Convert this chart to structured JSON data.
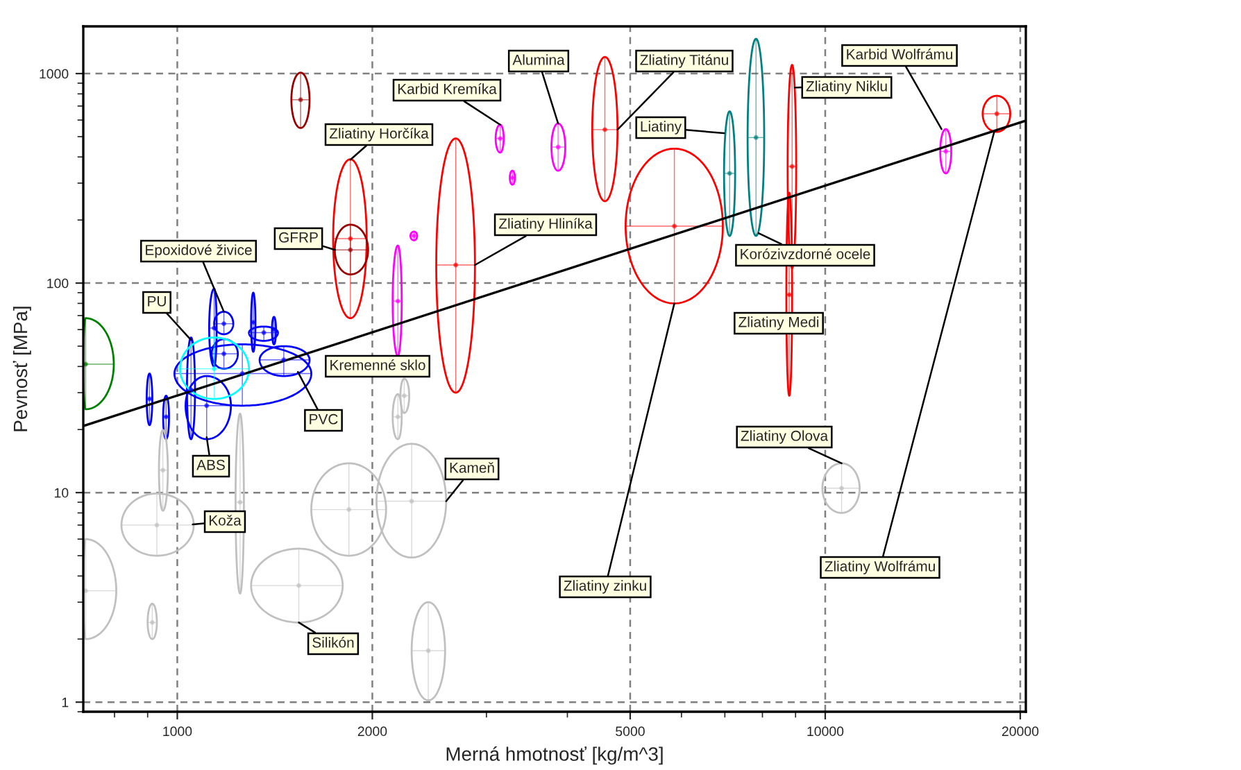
{
  "chart_data": {
    "type": "scatter",
    "xlabel": "Merná hmotnosť [kg/m^3]",
    "ylabel": "Pevnosť [MPa]",
    "log": "xy",
    "grid": true,
    "xlim": [
      716,
      20400
    ],
    "ylim": [
      0.9,
      1680
    ],
    "xticks": [
      1000,
      2000,
      5000,
      10000,
      20000
    ],
    "yticks": [
      1,
      10,
      100,
      1000
    ],
    "annotations": [
      {
        "text": "Karbid Kremíka",
        "x": 3150,
        "y": 570
      },
      {
        "text": "Alumina",
        "x": 3870,
        "y": 578
      },
      {
        "text": "Zliatiny Titánu",
        "x": 4780,
        "y": 540
      },
      {
        "text": "Karbid Wolfrámu",
        "x": 15120,
        "y": 543
      },
      {
        "text": "Zliatiny Horčíka",
        "x": 1850,
        "y": 388
      },
      {
        "text": "Zliatiny Niklu",
        "x": 8975,
        "y": 858
      },
      {
        "text": "Liatiny",
        "x": 6983,
        "y": 519
      },
      {
        "text": "GFRP",
        "x": 1752,
        "y": 144
      },
      {
        "text": "Zliatiny Hliníka",
        "x": 2880,
        "y": 122
      },
      {
        "text": "Epoxidové živice",
        "x": 1180,
        "y": 73
      },
      {
        "text": "PU",
        "x": 1050,
        "y": 53.5
      },
      {
        "text": "Korózivzdorné ocele",
        "x": 7890,
        "y": 173
      },
      {
        "text": "Zliatiny Medi",
        "x": 8890,
        "y": 64
      },
      {
        "text": "Kremenné sklo",
        "x": 2190,
        "y": 45
      },
      {
        "text": "PVC",
        "x": 1535,
        "y": 37.7
      },
      {
        "text": "ABS",
        "x": 1110,
        "y": 18.4
      },
      {
        "text": "Kameň",
        "x": 2600,
        "y": 9.1
      },
      {
        "text": "Zliatiny Olova",
        "x": 10600,
        "y": 13.8
      },
      {
        "text": "Koža",
        "x": 1056,
        "y": 7.05
      },
      {
        "text": "Zliatiny zinku",
        "x": 5850,
        "y": 80
      },
      {
        "text": "Zliatiny Wolfrámu",
        "x": 18230,
        "y": 527
      },
      {
        "text": "Silikón",
        "x": 1540,
        "y": 2.4
      }
    ],
    "series": [
      {
        "color": "#990000",
        "x": [
          1550
        ],
        "values": [
          750
        ],
        "xerrors": [
          [
            1500,
            1600
          ]
        ],
        "errors": [
          [
            550,
            1010
          ]
        ]
      },
      {
        "color": "#ff0000",
        "x": [
          1850
        ],
        "values": [
          163
        ],
        "xerrors": [
          [
            1740,
            1960
          ]
        ],
        "errors": [
          [
            68,
            390
          ]
        ]
      },
      {
        "color": "#990000",
        "x": [
          1850
        ],
        "values": [
          144
        ],
        "xerrors": [
          [
            1750,
            1970
          ]
        ],
        "errors": [
          [
            110,
            190
          ]
        ]
      },
      {
        "color": "#ff00ff",
        "x": [
          2190
        ],
        "values": [
          82
        ],
        "xerrors": [
          [
            2150,
            2220
          ]
        ],
        "errors": [
          [
            45,
            151
          ]
        ]
      },
      {
        "color": "#ff00ff",
        "x": [
          2320
        ],
        "values": [
          168
        ],
        "xerrors": [
          [
            2290,
            2345
          ]
        ],
        "errors": [
          [
            160,
            176
          ]
        ]
      },
      {
        "color": "#008000",
        "x": [
          722
        ],
        "values": [
          41
        ],
        "xerrors": [
          [
            716,
            798
          ]
        ],
        "errors": [
          [
            25,
            68
          ]
        ]
      },
      {
        "color": "#0000ff",
        "x": [
          1180
        ],
        "values": [
          64
        ],
        "xerrors": [
          [
            1140,
            1220
          ]
        ],
        "errors": [
          [
            57,
            73
          ]
        ]
      },
      {
        "color": "#0000ff",
        "x": [
          1140
        ],
        "values": [
          61
        ],
        "xerrors": [
          [
            1120,
            1150
          ]
        ],
        "errors": [
          [
            40,
            94
          ]
        ]
      },
      {
        "color": "#0000ff",
        "x": [
          1310
        ],
        "values": [
          65
        ],
        "xerrors": [
          [
            1300,
            1320
          ]
        ],
        "errors": [
          [
            47,
            90
          ]
        ]
      },
      {
        "color": "#0000ff",
        "x": [
          1410
        ],
        "values": [
          60
        ],
        "xerrors": [
          [
            1400,
            1420
          ]
        ],
        "errors": [
          [
            51,
            69
          ]
        ]
      },
      {
        "color": "#0000ff",
        "x": [
          1360
        ],
        "values": [
          58
        ],
        "xerrors": [
          [
            1290,
            1430
          ]
        ],
        "errors": [
          [
            53,
            62
          ]
        ]
      },
      {
        "color": "#0000ff",
        "x": [
          1180
        ],
        "values": [
          46
        ],
        "xerrors": [
          [
            1130,
            1240
          ]
        ],
        "errors": [
          [
            39,
            54
          ]
        ]
      },
      {
        "color": "#0000ff",
        "x": [
          1260
        ],
        "values": [
          37
        ],
        "xerrors": [
          [
            990,
            1610
          ]
        ],
        "errors": [
          [
            26,
            51
          ]
        ]
      },
      {
        "color": "#0000ff",
        "x": [
          1050
        ],
        "values": [
          31
        ],
        "xerrors": [
          [
            1035,
            1065
          ]
        ],
        "errors": [
          [
            18,
            55
          ]
        ]
      },
      {
        "color": "#0000ff",
        "x": [
          1110
        ],
        "values": [
          26
        ],
        "xerrors": [
          [
            1030,
            1210
          ]
        ],
        "errors": [
          [
            18,
            36
          ]
        ]
      },
      {
        "color": "#0000ff",
        "x": [
          1460
        ],
        "values": [
          43
        ],
        "xerrors": [
          [
            1340,
            1600
          ]
        ],
        "errors": [
          [
            36,
            50
          ]
        ]
      },
      {
        "color": "#00ffff",
        "x": [
          1140
        ],
        "values": [
          39
        ],
        "xerrors": [
          [
            1010,
            1290
          ]
        ],
        "errors": [
          [
            28,
            55
          ]
        ]
      },
      {
        "color": "#0000ff",
        "x": [
          906
        ],
        "values": [
          28
        ],
        "xerrors": [
          [
            897,
            915
          ]
        ],
        "errors": [
          [
            21,
            37
          ]
        ]
      },
      {
        "color": "#0000ff",
        "x": [
          961
        ],
        "values": [
          23
        ],
        "xerrors": [
          [
            951,
            971
          ]
        ],
        "errors": [
          [
            18,
            29
          ]
        ]
      },
      {
        "color": "#c0c0c0",
        "x": [
          930
        ],
        "values": [
          7.0
        ],
        "xerrors": [
          [
            820,
            1060
          ]
        ],
        "errors": [
          [
            5.0,
            9.9
          ]
        ]
      },
      {
        "color": "#c0c0c0",
        "x": [
          722
        ],
        "values": [
          3.4
        ],
        "xerrors": [
          [
            716,
            805
          ]
        ],
        "errors": [
          [
            2.0,
            6.0
          ]
        ]
      },
      {
        "color": "#c0c0c0",
        "x": [
          915
        ],
        "values": [
          2.4
        ],
        "xerrors": [
          [
            900,
            930
          ]
        ],
        "errors": [
          [
            2.0,
            2.95
          ]
        ]
      },
      {
        "color": "#c0c0c0",
        "x": [
          950
        ],
        "values": [
          12.8
        ],
        "xerrors": [
          [
            937,
            967
          ]
        ],
        "errors": [
          [
            8.2,
            19.9
          ]
        ]
      },
      {
        "color": "#c0c0c0",
        "x": [
          1250
        ],
        "values": [
          9.0
        ],
        "xerrors": [
          [
            1230,
            1267
          ]
        ],
        "errors": [
          [
            3.3,
            23.8
          ]
        ]
      },
      {
        "color": "#c0c0c0",
        "x": [
          1540
        ],
        "values": [
          3.6
        ],
        "xerrors": [
          [
            1300,
            1800
          ]
        ],
        "errors": [
          [
            2.4,
            5.4
          ]
        ]
      },
      {
        "color": "#c0c0c0",
        "x": [
          1840
        ],
        "values": [
          8.3
        ],
        "xerrors": [
          [
            1610,
            2100
          ]
        ],
        "errors": [
          [
            5.0,
            13.8
          ]
        ]
      },
      {
        "color": "#c0c0c0",
        "x": [
          2300
        ],
        "values": [
          9.1
        ],
        "xerrors": [
          [
            2030,
            2600
          ]
        ],
        "errors": [
          [
            4.9,
            17.1
          ]
        ]
      },
      {
        "color": "#c0c0c0",
        "x": [
          2440
        ],
        "values": [
          1.76
        ],
        "xerrors": [
          [
            2300,
            2590
          ]
        ],
        "errors": [
          [
            1.02,
            3.0
          ]
        ]
      },
      {
        "color": "#c0c0c0",
        "x": [
          2240
        ],
        "values": [
          29
        ],
        "xerrors": [
          [
            2210,
            2280
          ]
        ],
        "errors": [
          [
            24,
            35
          ]
        ]
      },
      {
        "color": "#c0c0c0",
        "x": [
          2190
        ],
        "values": [
          23
        ],
        "xerrors": [
          [
            2150,
            2220
          ]
        ],
        "errors": [
          [
            18,
            29.5
          ]
        ]
      },
      {
        "color": "#c0c0c0",
        "x": [
          10600
        ],
        "values": [
          10.5
        ],
        "xerrors": [
          [
            9900,
            11300
          ]
        ],
        "errors": [
          [
            8.0,
            13.8
          ]
        ]
      },
      {
        "color": "#ff00ff",
        "x": [
          3150
        ],
        "values": [
          490
        ],
        "xerrors": [
          [
            3100,
            3190
          ]
        ],
        "errors": [
          [
            420,
            570
          ]
        ]
      },
      {
        "color": "#ff00ff",
        "x": [
          3290
        ],
        "values": [
          318
        ],
        "xerrors": [
          [
            3260,
            3320
          ]
        ],
        "errors": [
          [
            295,
            344
          ]
        ]
      },
      {
        "color": "#ff00ff",
        "x": [
          3870
        ],
        "values": [
          446
        ],
        "xerrors": [
          [
            3780,
            3970
          ]
        ],
        "errors": [
          [
            344,
            578
          ]
        ]
      },
      {
        "color": "#ff0000",
        "x": [
          4570
        ],
        "values": [
          540
        ],
        "xerrors": [
          [
            4370,
            4780
          ]
        ],
        "errors": [
          [
            246,
            1200
          ]
        ]
      },
      {
        "color": "#ff0000",
        "x": [
          2690
        ],
        "values": [
          122
        ],
        "xerrors": [
          [
            2510,
            2880
          ]
        ],
        "errors": [
          [
            30,
            490
          ]
        ]
      },
      {
        "color": "#ff0000",
        "x": [
          5850
        ],
        "values": [
          187
        ],
        "xerrors": [
          [
            4920,
            6950
          ]
        ],
        "errors": [
          [
            80,
            438
          ]
        ]
      },
      {
        "color": "#008080",
        "x": [
          7120
        ],
        "values": [
          334
        ],
        "xerrors": [
          [
            6980,
            7260
          ]
        ],
        "errors": [
          [
            168,
            660
          ]
        ]
      },
      {
        "color": "#008080",
        "x": [
          7820
        ],
        "values": [
          495
        ],
        "xerrors": [
          [
            7590,
            8050
          ]
        ],
        "errors": [
          [
            168,
            1465
          ]
        ]
      },
      {
        "color": "#ff0000",
        "x": [
          8890
        ],
        "values": [
          360
        ],
        "xerrors": [
          [
            8750,
            9020
          ]
        ],
        "errors": [
          [
            118,
            1100
          ]
        ]
      },
      {
        "color": "#ff0000",
        "x": [
          8800
        ],
        "values": [
          88
        ],
        "xerrors": [
          [
            8710,
            8890
          ]
        ],
        "errors": [
          [
            29,
            270
          ]
        ]
      },
      {
        "color": "#ff00ff",
        "x": [
          15350
        ],
        "values": [
          425
        ],
        "xerrors": [
          [
            15050,
            15650
          ]
        ],
        "errors": [
          [
            334,
            543
          ]
        ]
      },
      {
        "color": "#ff0000",
        "x": [
          18400
        ],
        "values": [
          643
        ],
        "xerrors": [
          [
            17500,
            19300
          ]
        ],
        "errors": [
          [
            527,
            783
          ]
        ]
      },
      {
        "type": "line",
        "color": "#000000",
        "x": [
          716,
          20400
        ],
        "values": [
          20.8,
          596
        ]
      }
    ]
  }
}
